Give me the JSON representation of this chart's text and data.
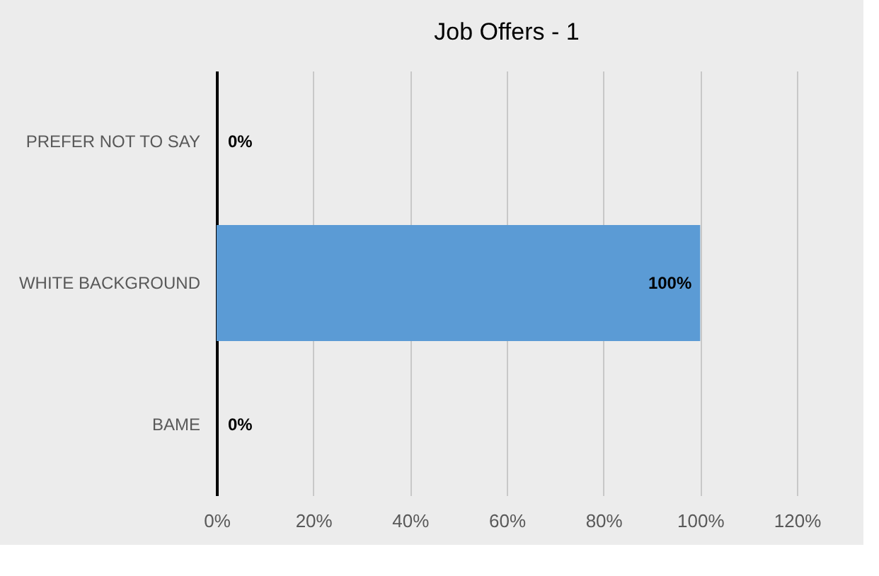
{
  "chart_data": {
    "type": "bar",
    "title": "Job Offers - 1",
    "orientation": "horizontal",
    "categories": [
      "PREFER NOT TO SAY",
      "WHITE BACKGROUND",
      "BAME"
    ],
    "values": [
      0,
      100,
      0
    ],
    "color": "#5b9bd5",
    "value_labels": [
      "0%",
      "100%",
      "0%"
    ],
    "xlim": [
      0,
      120
    ],
    "xticks": [
      {
        "value": 0,
        "label": "0%"
      },
      {
        "value": 20,
        "label": "20%"
      },
      {
        "value": 40,
        "label": "40%"
      },
      {
        "value": 60,
        "label": "60%"
      },
      {
        "value": 80,
        "label": "80%"
      },
      {
        "value": 100,
        "label": "100%"
      },
      {
        "value": 120,
        "label": "120%"
      }
    ],
    "grid": "x"
  }
}
